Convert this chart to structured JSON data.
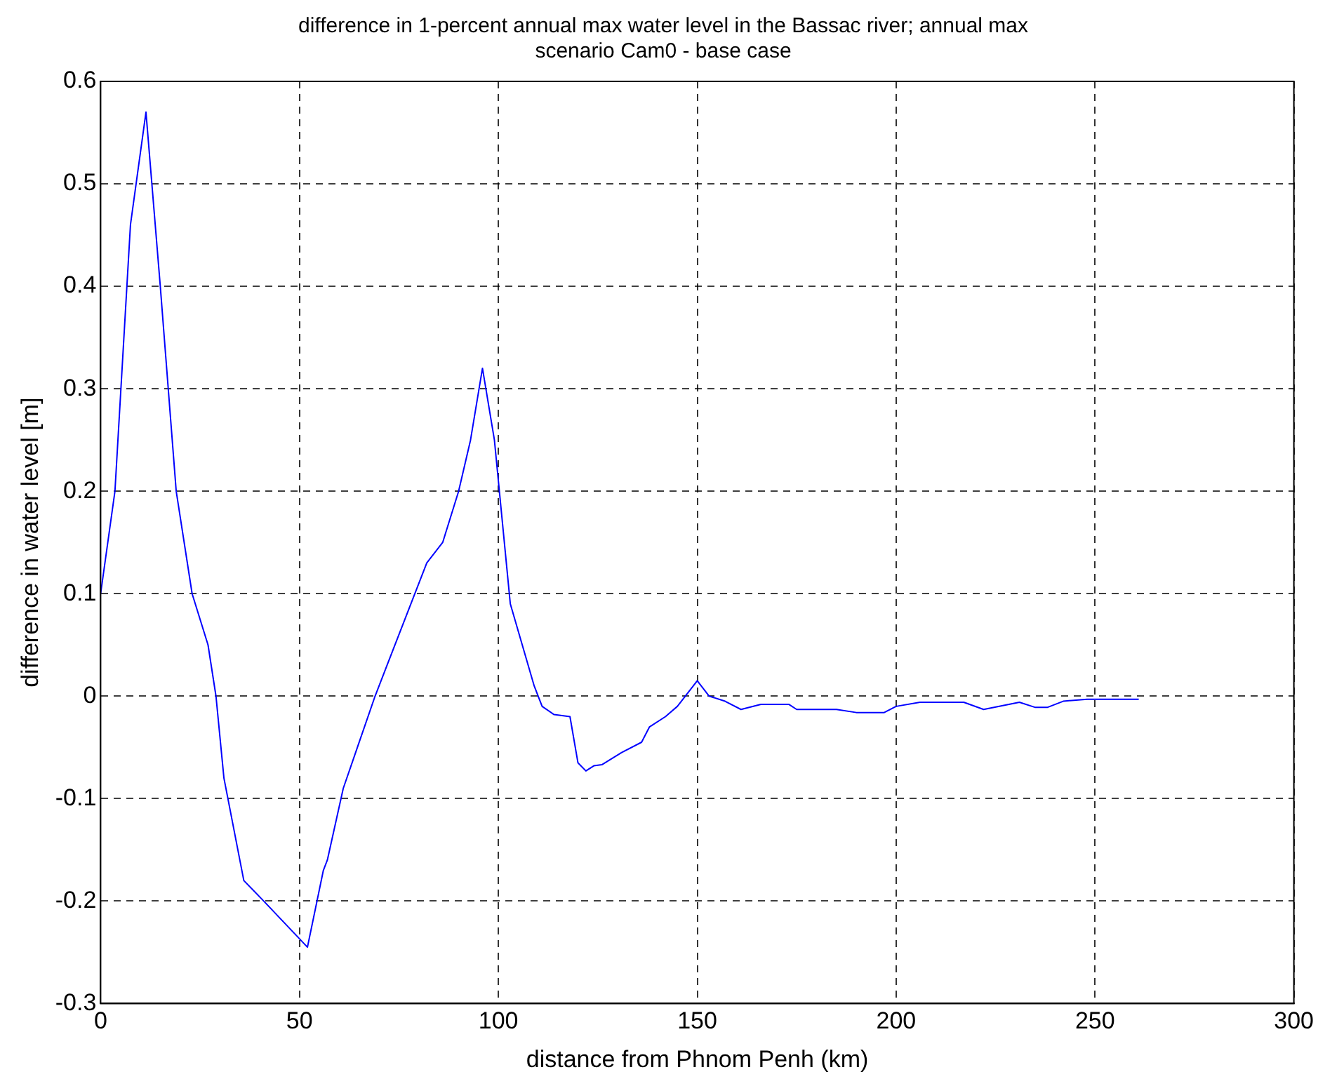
{
  "chart_data": {
    "type": "line",
    "title": [
      "difference in 1-percent annual max water level in the Bassac river; annual max",
      "scenario Cam0 - base case"
    ],
    "xlabel": "distance from Phnom Penh (km)",
    "ylabel": "difference in water level [m]",
    "series": [
      {
        "color": "#0000ff",
        "x": [
          0,
          3.6,
          7.5,
          11.4,
          15,
          19,
          23,
          27,
          29,
          31,
          36,
          41,
          52,
          56,
          57,
          61,
          69,
          72,
          82,
          86,
          90,
          93,
          96,
          99,
          103,
          106,
          109,
          111,
          114,
          118,
          120,
          122,
          124,
          126,
          131,
          136,
          138,
          142,
          145,
          150,
          153,
          157,
          161,
          166,
          173,
          175,
          185,
          190,
          197,
          200,
          206,
          217,
          222,
          231,
          235,
          238,
          242,
          248,
          261
        ],
        "values": [
          0.1,
          0.2,
          0.46,
          0.57,
          0.4,
          0.2,
          0.1,
          0.05,
          0,
          -0.08,
          -0.18,
          -0.2,
          -0.245,
          -0.17,
          -0.16,
          -0.09,
          0,
          0.03,
          0.13,
          0.15,
          0.2,
          0.25,
          0.32,
          0.25,
          0.09,
          0.05,
          0.01,
          -0.01,
          -0.018,
          -0.02,
          -0.065,
          -0.073,
          -0.068,
          -0.067,
          -0.055,
          -0.045,
          -0.03,
          -0.02,
          -0.01,
          0.015,
          0,
          -0.005,
          -0.013,
          -0.008,
          -0.008,
          -0.013,
          -0.013,
          -0.016,
          -0.016,
          -0.01,
          -0.006,
          -0.006,
          -0.013,
          -0.006,
          -0.011,
          -0.011,
          -0.005,
          -0.003,
          -0.003
        ]
      }
    ],
    "xlim": [
      0,
      300
    ],
    "xticks": [
      0,
      50,
      100,
      150,
      200,
      250,
      300
    ],
    "ylim": [
      -0.3,
      0.6
    ],
    "yticks": [
      -0.3,
      -0.2,
      -0.1,
      0,
      0.1,
      0.2,
      0.3,
      0.4,
      0.5,
      0.6
    ],
    "grid": true,
    "marker": "none",
    "legend": false
  }
}
